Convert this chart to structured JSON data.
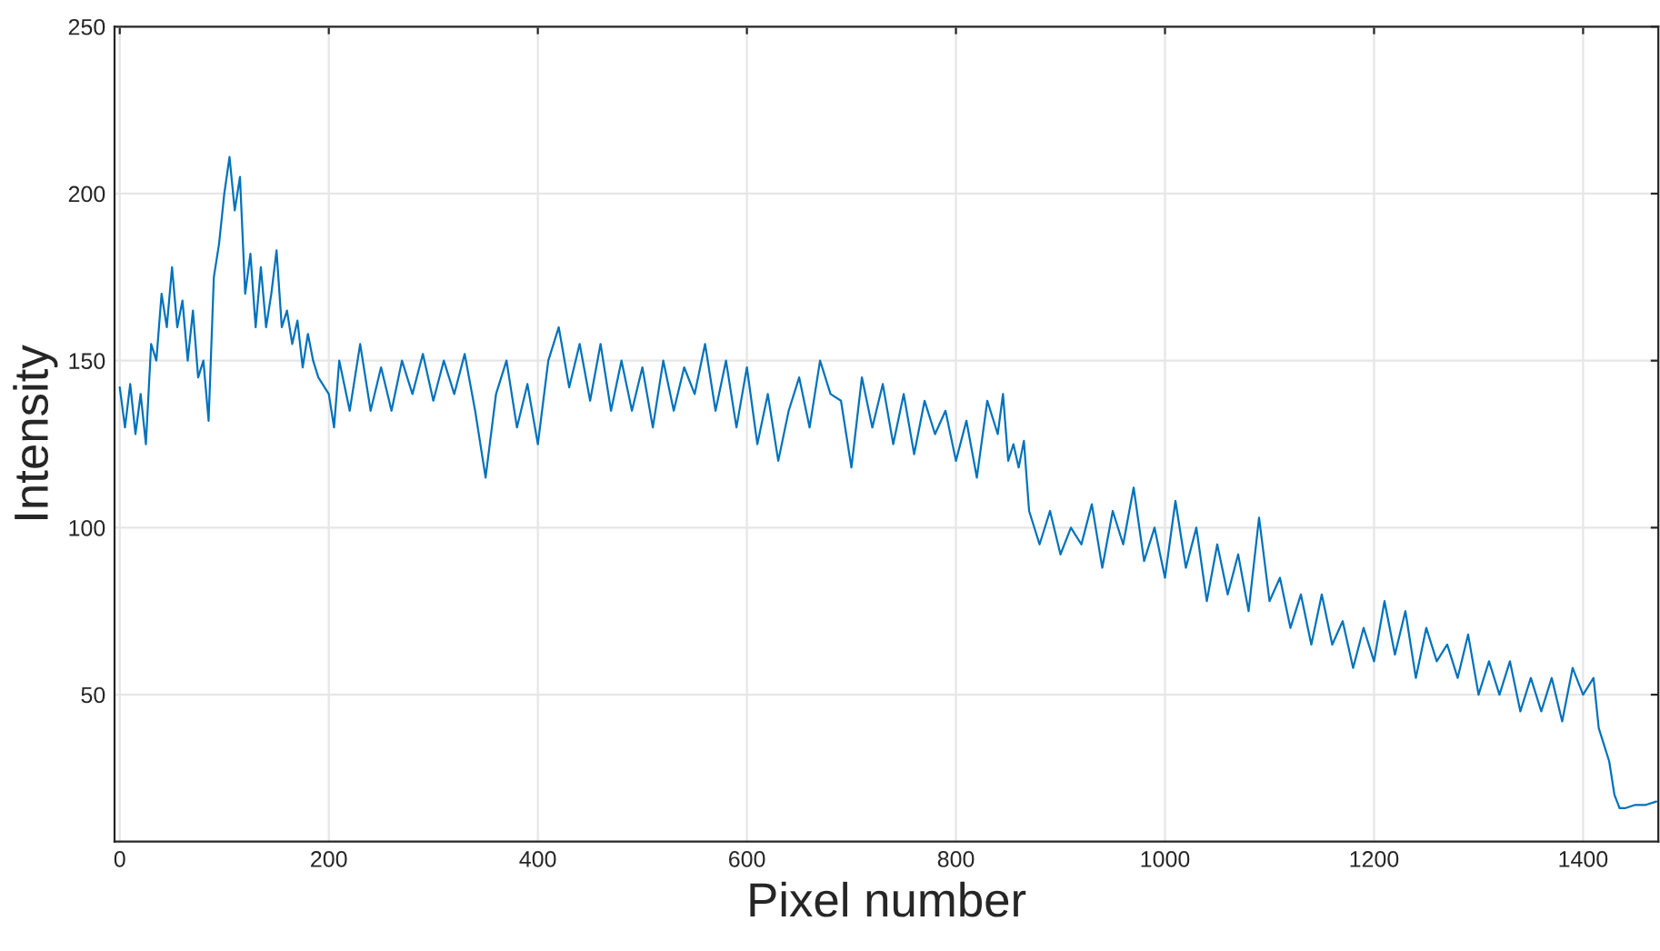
{
  "chart_data": {
    "type": "line",
    "xlabel": "Pixel number",
    "ylabel": "Intensity",
    "xlim": [
      -5,
      1472
    ],
    "ylim": [
      6,
      250
    ],
    "xticks": [
      0,
      200,
      400,
      600,
      800,
      1000,
      1200,
      1400
    ],
    "yticks": [
      50,
      100,
      150,
      200,
      250
    ],
    "grid": true,
    "series": [
      {
        "color": "#0072bd",
        "x": [
          0,
          5,
          10,
          15,
          20,
          25,
          30,
          35,
          40,
          45,
          50,
          55,
          60,
          65,
          70,
          75,
          80,
          85,
          90,
          95,
          100,
          105,
          110,
          115,
          120,
          125,
          130,
          135,
          140,
          145,
          150,
          155,
          160,
          165,
          170,
          175,
          180,
          185,
          190,
          200,
          205,
          210,
          220,
          230,
          240,
          250,
          260,
          270,
          280,
          290,
          300,
          310,
          320,
          330,
          340,
          350,
          360,
          370,
          380,
          390,
          400,
          410,
          420,
          430,
          440,
          450,
          460,
          470,
          480,
          490,
          500,
          510,
          520,
          530,
          540,
          550,
          560,
          570,
          580,
          590,
          600,
          610,
          620,
          630,
          640,
          650,
          660,
          670,
          680,
          690,
          700,
          710,
          720,
          730,
          740,
          750,
          760,
          770,
          780,
          790,
          800,
          810,
          820,
          830,
          840,
          845,
          850,
          855,
          860,
          865,
          870,
          880,
          890,
          900,
          910,
          920,
          930,
          940,
          950,
          960,
          970,
          980,
          990,
          1000,
          1010,
          1020,
          1030,
          1040,
          1050,
          1060,
          1070,
          1080,
          1090,
          1100,
          1110,
          1120,
          1130,
          1140,
          1150,
          1160,
          1170,
          1180,
          1190,
          1200,
          1210,
          1220,
          1230,
          1240,
          1250,
          1260,
          1270,
          1280,
          1290,
          1300,
          1310,
          1320,
          1330,
          1340,
          1350,
          1360,
          1370,
          1380,
          1390,
          1400,
          1410,
          1415,
          1420,
          1425,
          1430,
          1435,
          1440,
          1450,
          1460,
          1470
        ],
        "values": [
          142,
          130,
          143,
          128,
          140,
          125,
          155,
          150,
          170,
          160,
          178,
          160,
          168,
          150,
          165,
          145,
          150,
          132,
          175,
          185,
          200,
          211,
          195,
          205,
          170,
          182,
          160,
          178,
          160,
          170,
          183,
          160,
          165,
          155,
          162,
          148,
          158,
          150,
          145,
          140,
          130,
          150,
          135,
          155,
          135,
          148,
          135,
          150,
          140,
          152,
          138,
          150,
          140,
          152,
          135,
          115,
          140,
          150,
          130,
          143,
          125,
          150,
          160,
          142,
          155,
          138,
          155,
          135,
          150,
          135,
          148,
          130,
          150,
          135,
          148,
          140,
          155,
          135,
          150,
          130,
          148,
          125,
          140,
          120,
          135,
          145,
          130,
          150,
          140,
          138,
          118,
          145,
          130,
          143,
          125,
          140,
          122,
          138,
          128,
          135,
          120,
          132,
          115,
          138,
          128,
          140,
          120,
          125,
          118,
          126,
          105,
          95,
          105,
          92,
          100,
          95,
          107,
          88,
          105,
          95,
          112,
          90,
          100,
          85,
          108,
          88,
          100,
          78,
          95,
          80,
          92,
          75,
          103,
          78,
          85,
          70,
          80,
          65,
          80,
          65,
          72,
          58,
          70,
          60,
          78,
          62,
          75,
          55,
          70,
          60,
          65,
          55,
          68,
          50,
          60,
          50,
          60,
          45,
          55,
          45,
          55,
          42,
          58,
          50,
          55,
          40,
          35,
          30,
          20,
          16,
          16,
          17,
          17,
          18
        ]
      }
    ]
  }
}
